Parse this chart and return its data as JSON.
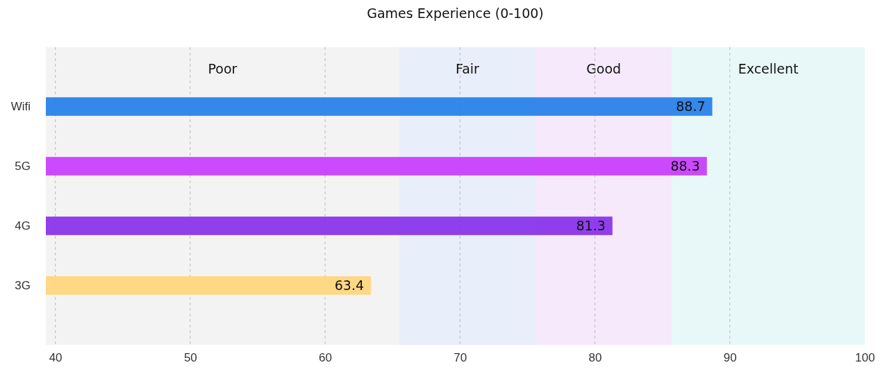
{
  "chart_data": {
    "type": "bar",
    "orientation": "horizontal",
    "title": "Games Experience (0-100)",
    "categories": [
      "Wifi",
      "5G",
      "4G",
      "3G"
    ],
    "values": [
      88.7,
      88.3,
      81.3,
      63.4
    ],
    "colors": [
      "#2a82ea",
      "#c840fb",
      "#8a35ea",
      "#ffd680"
    ],
    "data_labels": true,
    "xlim": [
      39.3,
      100
    ],
    "xticks": [
      40,
      50,
      60,
      70,
      80,
      90,
      100
    ],
    "grid": "x",
    "bands": [
      {
        "axis": "x",
        "from": 39.3,
        "to": 65.5,
        "label": "Poor",
        "color": "#f3f3f3"
      },
      {
        "axis": "x",
        "from": 65.5,
        "to": 75.6,
        "label": "Fair",
        "color": "#e8eefa"
      },
      {
        "axis": "x",
        "from": 75.6,
        "to": 85.7,
        "label": "Good",
        "color": "#f5e9fb"
      },
      {
        "axis": "x",
        "from": 85.7,
        "to": 100,
        "label": "Excellent",
        "color": "#e8f8f8"
      }
    ]
  }
}
